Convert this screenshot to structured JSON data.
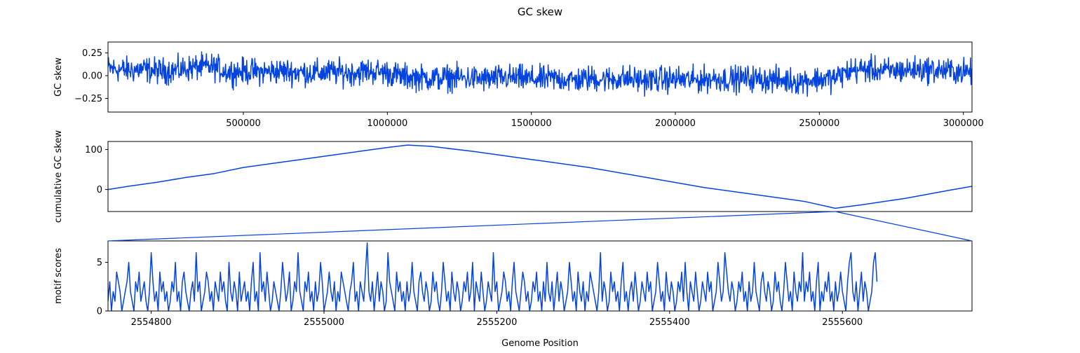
{
  "figure": {
    "title": "GC skew",
    "xlabel": "Genome Position",
    "line_color": "#0443e0"
  },
  "chart_data": [
    {
      "type": "line",
      "ylabel": "GC skew",
      "xlim": [
        30000,
        3030000
      ],
      "ylim": [
        -0.4,
        0.37
      ],
      "xticks": [
        500000,
        1000000,
        1500000,
        2000000,
        2500000,
        3000000
      ],
      "xtick_labels": [
        "500000",
        "1000000",
        "1500000",
        "2000000",
        "2500000",
        "3000000"
      ],
      "yticks": [
        0.25,
        0.0,
        -0.25
      ],
      "ytick_labels": [
        "0.25",
        "0.00",
        "−0.25"
      ],
      "series": [
        {
          "x": [
            30000,
            90000,
            150000,
            210000,
            270000,
            330000,
            390000,
            450000,
            510000,
            570000,
            630000,
            690000,
            750000,
            810000,
            870000,
            930000,
            990000,
            1050000,
            1110000,
            1170000,
            1230000,
            1290000,
            1350000,
            1410000,
            1470000,
            1530000,
            1590000,
            1650000,
            1710000,
            1770000,
            1830000,
            1890000,
            1950000,
            2010000,
            2070000,
            2130000,
            2190000,
            2250000,
            2310000,
            2370000,
            2430000,
            2490000,
            2550000,
            2610000,
            2670000,
            2730000,
            2790000,
            2850000,
            2910000,
            2970000,
            3030000
          ],
          "y": [
            0.08,
            0.06,
            0.07,
            0.05,
            0.06,
            0.09,
            0.1,
            0.04,
            0.05,
            0.04,
            0.05,
            0.04,
            0.03,
            0.04,
            0.03,
            0.05,
            0.04,
            -0.01,
            -0.02,
            -0.03,
            -0.02,
            -0.03,
            -0.04,
            -0.02,
            -0.03,
            -0.04,
            -0.03,
            -0.05,
            -0.03,
            -0.04,
            -0.03,
            -0.05,
            -0.04,
            -0.04,
            -0.05,
            -0.03,
            -0.04,
            -0.03,
            -0.04,
            -0.05,
            -0.06,
            -0.04,
            -0.03,
            0.06,
            0.07,
            0.05,
            0.06,
            0.07,
            0.06,
            0.05,
            0.04
          ]
        }
      ]
    },
    {
      "type": "line",
      "ylabel": "cumulative GC skew",
      "xlim": [
        30000,
        3030000
      ],
      "ylim": [
        -55,
        120
      ],
      "yticks": [
        100,
        0
      ],
      "ytick_labels": [
        "100",
        "0"
      ],
      "series": [
        {
          "x": [
            30000,
            100000,
            200000,
            300000,
            400000,
            500000,
            600000,
            700000,
            800000,
            900000,
            1000000,
            1070000,
            1150000,
            1300000,
            1500000,
            1700000,
            1900000,
            2100000,
            2300000,
            2450000,
            2555000,
            2650000,
            2800000,
            2950000,
            3030000
          ],
          "y": [
            0,
            8,
            18,
            30,
            40,
            55,
            65,
            75,
            85,
            95,
            105,
            111,
            108,
            95,
            75,
            55,
            30,
            5,
            -15,
            -30,
            -47,
            -38,
            -22,
            -2,
            8
          ]
        }
      ]
    },
    {
      "type": "line",
      "ylabel": "motif scores",
      "xlim": [
        2554750,
        2555750
      ],
      "ylim": [
        0,
        7.2
      ],
      "xticks": [
        2554800,
        2555000,
        2555200,
        2555400,
        2555600
      ],
      "xtick_labels": [
        "2554800",
        "2555000",
        "2555200",
        "2555400",
        "2555600"
      ],
      "yticks": [
        5,
        0
      ],
      "ytick_labels": [
        "5",
        "0"
      ],
      "series": [
        {
          "x_start": 2554750,
          "x_step": 2,
          "y": [
            1,
            3,
            0,
            2,
            1,
            4,
            3,
            2,
            0,
            1,
            2,
            3,
            5,
            2,
            1,
            0,
            3,
            2,
            4,
            1,
            2,
            3,
            1,
            0,
            2,
            6,
            3,
            1,
            2,
            0,
            4,
            2,
            3,
            1,
            2,
            0,
            1,
            3,
            2,
            5,
            1,
            2,
            0,
            3,
            4,
            2,
            1,
            0,
            2,
            3,
            1,
            6,
            2,
            3,
            0,
            1,
            2,
            4,
            3,
            1,
            2,
            0,
            3,
            2,
            1,
            4,
            2,
            3,
            1,
            0,
            5,
            2,
            1,
            3,
            2,
            0,
            4,
            1,
            2,
            3,
            1,
            2,
            0,
            3,
            5,
            1,
            2,
            0,
            6,
            2,
            3,
            1,
            4,
            2,
            0,
            1,
            3,
            2,
            1,
            0,
            2,
            5,
            3,
            1,
            2,
            4,
            0,
            1,
            3,
            2,
            6,
            2,
            1,
            0,
            3,
            2,
            4,
            1,
            2,
            0,
            3,
            1,
            2,
            5,
            3,
            0,
            1,
            2,
            4,
            2,
            1,
            3,
            0,
            2,
            1,
            4,
            3,
            2,
            1,
            0,
            2,
            3,
            5,
            1,
            2,
            0,
            3,
            2,
            1,
            4,
            7,
            2,
            1,
            3,
            0,
            2,
            4,
            1,
            3,
            2,
            0,
            1,
            6,
            3,
            2,
            1,
            0,
            4,
            2,
            3,
            1,
            2,
            0,
            3,
            1,
            2,
            5,
            2,
            1,
            0,
            3,
            4,
            2,
            1,
            3,
            2,
            0,
            1,
            4,
            2,
            3,
            1,
            0,
            2,
            5,
            3,
            1,
            2,
            0,
            4,
            2,
            1,
            3,
            2,
            0,
            1,
            3,
            2,
            4,
            1,
            2,
            5,
            0,
            3,
            2,
            1,
            4,
            2,
            0,
            1,
            3,
            2,
            1,
            6,
            2,
            3,
            0,
            1,
            2,
            4,
            3,
            1,
            2,
            0,
            3,
            5,
            2,
            1,
            0,
            2,
            4,
            3,
            1,
            2,
            0,
            1,
            3,
            2,
            4,
            1,
            2,
            0,
            3,
            1,
            5,
            2,
            1,
            3,
            0,
            2,
            4,
            1,
            3,
            2,
            0,
            1,
            2,
            5,
            3,
            1,
            2,
            0,
            4,
            2,
            1,
            3,
            0,
            2,
            1,
            4,
            3,
            2,
            1,
            0,
            2,
            6,
            1,
            3,
            2,
            0,
            1,
            4,
            2,
            3,
            1,
            2,
            0,
            3,
            5,
            1,
            2,
            0,
            2,
            3,
            1,
            4,
            2,
            0,
            1,
            3,
            2,
            1,
            4,
            2,
            3,
            0,
            1,
            2,
            5,
            3,
            1,
            2,
            0,
            4,
            2,
            1,
            3,
            2,
            0,
            1,
            3,
            2,
            4,
            1,
            5,
            2,
            0,
            3,
            2,
            1,
            4,
            2,
            0,
            1,
            3,
            2,
            1,
            4,
            2,
            3,
            0,
            1,
            2,
            5,
            3,
            1,
            2,
            6,
            4,
            2,
            1,
            3,
            2,
            0,
            1,
            3,
            2,
            4,
            1,
            2,
            0,
            3,
            1,
            2,
            5,
            2,
            1,
            0,
            3,
            4,
            2,
            1,
            3,
            2,
            0,
            1,
            4,
            2,
            3,
            1,
            0,
            2,
            5,
            3,
            1,
            2,
            0,
            4,
            2,
            1,
            3,
            2,
            6,
            1,
            3,
            2,
            4,
            1,
            2,
            0,
            3,
            5,
            0,
            2,
            1,
            3,
            2,
            4,
            1,
            2,
            0,
            3,
            1,
            2,
            4,
            2,
            1,
            0,
            3,
            5,
            6,
            2,
            1,
            3,
            0,
            2,
            4,
            1,
            3,
            2,
            0,
            1,
            2,
            5,
            6,
            3
          ]
        }
      ]
    }
  ]
}
